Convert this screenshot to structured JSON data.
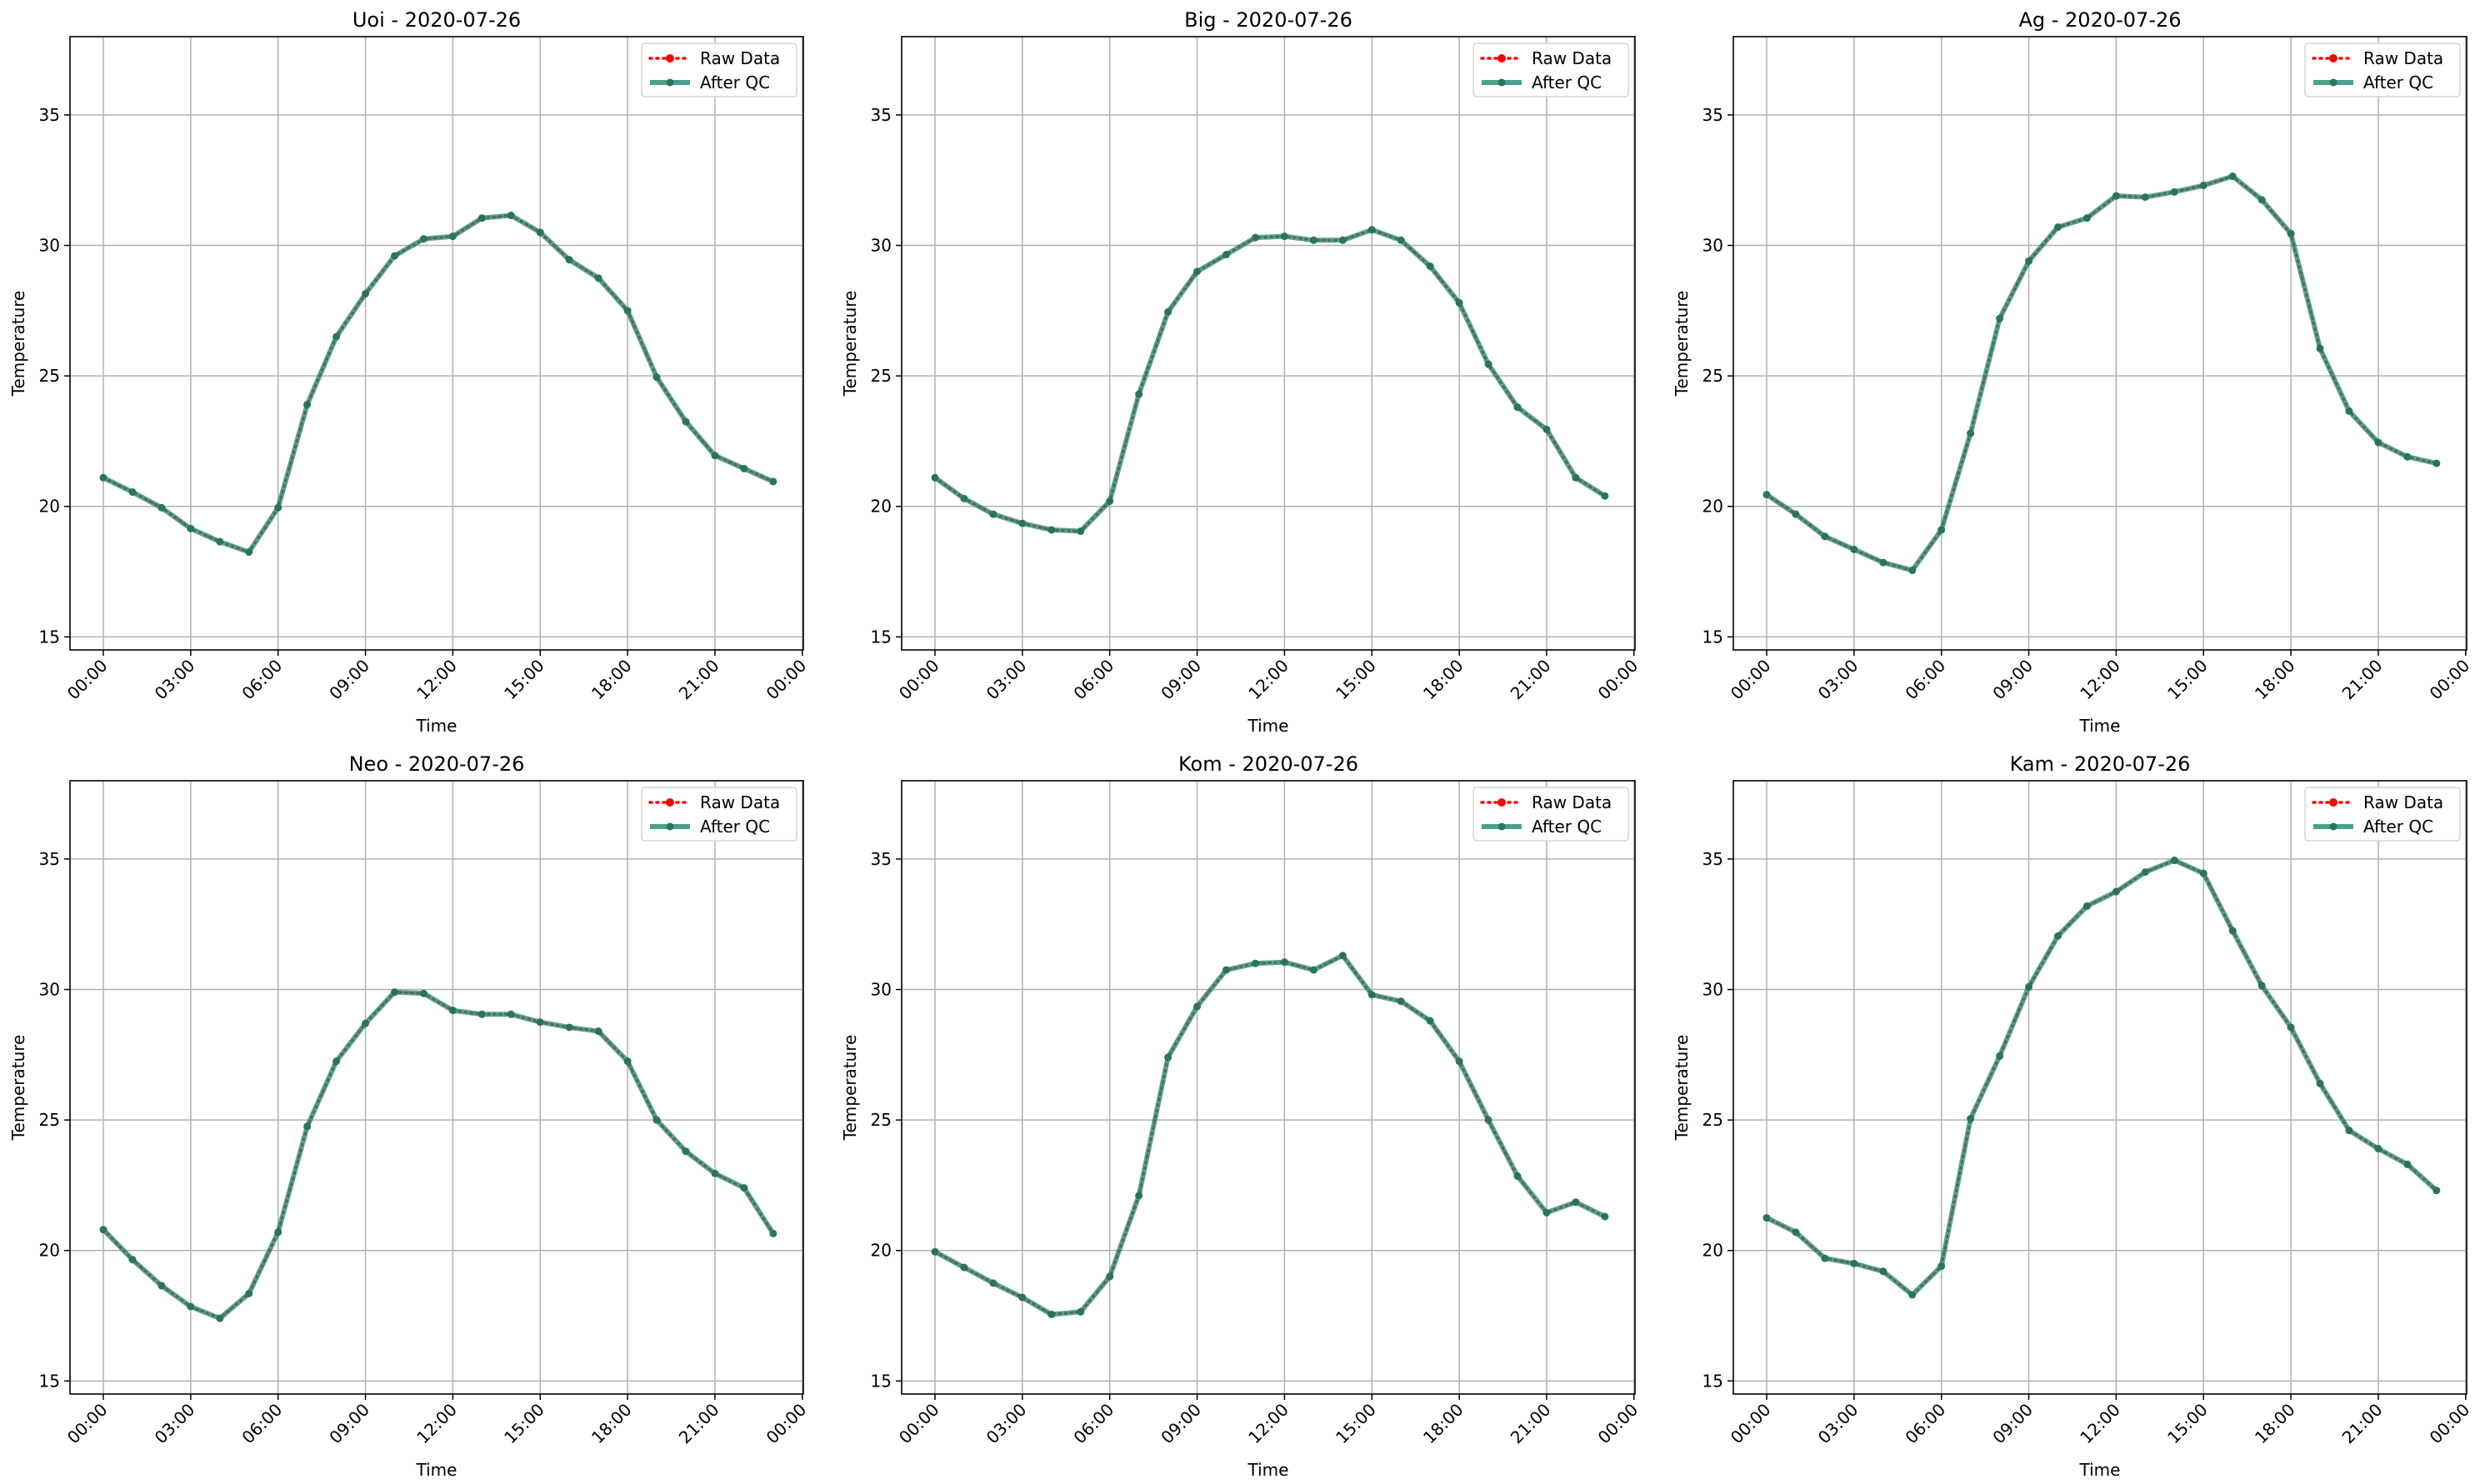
{
  "x_ticks": [
    "00:00",
    "03:00",
    "06:00",
    "09:00",
    "12:00",
    "15:00",
    "18:00",
    "21:00",
    "00:00"
  ],
  "y_ticks": [
    "15",
    "20",
    "25",
    "30",
    "35"
  ],
  "colors": {
    "raw": "#ff0000",
    "qc": "#1f8a6e",
    "qc_marker": "#2a7360",
    "grid": "#b0b0b0"
  },
  "chart_data": [
    {
      "type": "line",
      "title": "Uoi - 2020-07-26",
      "xlabel": "Time",
      "ylabel": "Temperature",
      "ylim": [
        14.5,
        38
      ],
      "x_hours": [
        0,
        1,
        2,
        3,
        4,
        5,
        6,
        7,
        8,
        9,
        10,
        11,
        12,
        13,
        14,
        15,
        16,
        17,
        18,
        19,
        20,
        21,
        22,
        23
      ],
      "legend": {
        "position": "upper-right",
        "entries": [
          "Raw Data",
          "After QC"
        ]
      },
      "series": [
        {
          "name": "Raw Data",
          "values": [
            21.1,
            20.55,
            19.95,
            19.15,
            18.65,
            18.25,
            19.95,
            23.9,
            26.5,
            28.15,
            29.6,
            30.25,
            30.35,
            31.05,
            31.15,
            30.5,
            29.45,
            28.75,
            27.5,
            24.95,
            23.25,
            21.95,
            21.45,
            20.95
          ]
        },
        {
          "name": "After QC",
          "values": [
            21.1,
            20.55,
            19.95,
            19.15,
            18.65,
            18.25,
            19.95,
            23.9,
            26.5,
            28.15,
            29.6,
            30.25,
            30.35,
            31.05,
            31.15,
            30.5,
            29.45,
            28.75,
            27.5,
            24.95,
            23.25,
            21.95,
            21.45,
            20.95
          ]
        }
      ]
    },
    {
      "type": "line",
      "title": "Big - 2020-07-26",
      "xlabel": "Time",
      "ylabel": "Temperature",
      "ylim": [
        14.5,
        38
      ],
      "x_hours": [
        0,
        1,
        2,
        3,
        4,
        5,
        6,
        7,
        8,
        9,
        10,
        11,
        12,
        13,
        14,
        15,
        16,
        17,
        18,
        19,
        20,
        21,
        22,
        23
      ],
      "legend": {
        "position": "upper-right",
        "entries": [
          "Raw Data",
          "After QC"
        ]
      },
      "series": [
        {
          "name": "Raw Data",
          "values": [
            21.1,
            20.3,
            19.7,
            19.35,
            19.1,
            19.05,
            20.2,
            24.3,
            27.45,
            29.0,
            29.65,
            30.3,
            30.35,
            30.2,
            30.2,
            30.6,
            30.2,
            29.2,
            27.8,
            25.45,
            23.8,
            22.95,
            21.1,
            20.4
          ]
        },
        {
          "name": "After QC",
          "values": [
            21.1,
            20.3,
            19.7,
            19.35,
            19.1,
            19.05,
            20.2,
            24.3,
            27.45,
            29.0,
            29.65,
            30.3,
            30.35,
            30.2,
            30.2,
            30.6,
            30.2,
            29.2,
            27.8,
            25.45,
            23.8,
            22.95,
            21.1,
            20.4
          ]
        }
      ]
    },
    {
      "type": "line",
      "title": "Ag - 2020-07-26",
      "xlabel": "Time",
      "ylabel": "Temperature",
      "ylim": [
        14.5,
        38
      ],
      "x_hours": [
        0,
        1,
        2,
        3,
        4,
        5,
        6,
        7,
        8,
        9,
        10,
        11,
        12,
        13,
        14,
        15,
        16,
        17,
        18,
        19,
        20,
        21,
        22,
        23
      ],
      "legend": {
        "position": "upper-right",
        "entries": [
          "Raw Data",
          "After QC"
        ]
      },
      "series": [
        {
          "name": "Raw Data",
          "values": [
            20.45,
            19.7,
            18.85,
            18.35,
            17.85,
            17.55,
            19.1,
            22.8,
            27.2,
            29.4,
            30.7,
            31.05,
            31.9,
            31.85,
            32.05,
            32.3,
            32.65,
            31.75,
            30.45,
            26.05,
            23.65,
            22.45,
            21.9,
            21.65
          ]
        },
        {
          "name": "After QC",
          "values": [
            20.45,
            19.7,
            18.85,
            18.35,
            17.85,
            17.55,
            19.1,
            22.8,
            27.2,
            29.4,
            30.7,
            31.05,
            31.9,
            31.85,
            32.05,
            32.3,
            32.65,
            31.75,
            30.45,
            26.05,
            23.65,
            22.45,
            21.9,
            21.65
          ]
        }
      ]
    },
    {
      "type": "line",
      "title": "Neo - 2020-07-26",
      "xlabel": "Time",
      "ylabel": "Temperature",
      "ylim": [
        14.5,
        38
      ],
      "x_hours": [
        0,
        1,
        2,
        3,
        4,
        5,
        6,
        7,
        8,
        9,
        10,
        11,
        12,
        13,
        14,
        15,
        16,
        17,
        18,
        19,
        20,
        21,
        22,
        23
      ],
      "legend": {
        "position": "upper-right",
        "entries": [
          "Raw Data",
          "After QC"
        ]
      },
      "series": [
        {
          "name": "Raw Data",
          "values": [
            20.8,
            19.65,
            18.65,
            17.85,
            17.4,
            18.35,
            20.7,
            24.75,
            27.25,
            28.7,
            29.9,
            29.85,
            29.2,
            29.05,
            29.05,
            28.75,
            28.55,
            28.4,
            27.25,
            25.0,
            23.8,
            22.95,
            22.4,
            20.65
          ]
        },
        {
          "name": "After QC",
          "values": [
            20.8,
            19.65,
            18.65,
            17.85,
            17.4,
            18.35,
            20.7,
            24.75,
            27.25,
            28.7,
            29.9,
            29.85,
            29.2,
            29.05,
            29.05,
            28.75,
            28.55,
            28.4,
            27.25,
            25.0,
            23.8,
            22.95,
            22.4,
            20.65
          ]
        }
      ]
    },
    {
      "type": "line",
      "title": "Kom - 2020-07-26",
      "xlabel": "Time",
      "ylabel": "Temperature",
      "ylim": [
        14.5,
        38
      ],
      "x_hours": [
        0,
        1,
        2,
        3,
        4,
        5,
        6,
        7,
        8,
        9,
        10,
        11,
        12,
        13,
        14,
        15,
        16,
        17,
        18,
        19,
        20,
        21,
        22,
        23
      ],
      "legend": {
        "position": "upper-right",
        "entries": [
          "Raw Data",
          "After QC"
        ]
      },
      "series": [
        {
          "name": "Raw Data",
          "values": [
            19.95,
            19.35,
            18.75,
            18.2,
            17.55,
            17.65,
            19.0,
            22.1,
            27.4,
            29.35,
            30.75,
            31.0,
            31.05,
            30.75,
            31.3,
            29.8,
            29.55,
            28.8,
            27.25,
            25.0,
            22.85,
            21.45,
            21.85,
            21.3
          ]
        },
        {
          "name": "After QC",
          "values": [
            19.95,
            19.35,
            18.75,
            18.2,
            17.55,
            17.65,
            19.0,
            22.1,
            27.4,
            29.35,
            30.75,
            31.0,
            31.05,
            30.75,
            31.3,
            29.8,
            29.55,
            28.8,
            27.25,
            25.0,
            22.85,
            21.45,
            21.85,
            21.3
          ]
        }
      ]
    },
    {
      "type": "line",
      "title": "Kam - 2020-07-26",
      "xlabel": "Time",
      "ylabel": "Temperature",
      "ylim": [
        14.5,
        38
      ],
      "x_hours": [
        0,
        1,
        2,
        3,
        4,
        5,
        6,
        7,
        8,
        9,
        10,
        11,
        12,
        13,
        14,
        15,
        16,
        17,
        18,
        19,
        20,
        21,
        22,
        23
      ],
      "legend": {
        "position": "upper-right",
        "entries": [
          "Raw Data",
          "After QC"
        ]
      },
      "series": [
        {
          "name": "Raw Data",
          "values": [
            21.25,
            20.7,
            19.7,
            19.5,
            19.2,
            18.3,
            19.4,
            25.05,
            27.45,
            30.1,
            32.05,
            33.2,
            33.75,
            34.5,
            34.95,
            34.45,
            32.25,
            30.15,
            28.55,
            26.4,
            24.6,
            23.9,
            23.3,
            22.3
          ]
        },
        {
          "name": "After QC",
          "values": [
            21.25,
            20.7,
            19.7,
            19.5,
            19.2,
            18.3,
            19.4,
            25.05,
            27.45,
            30.1,
            32.05,
            33.2,
            33.75,
            34.5,
            34.95,
            34.45,
            32.25,
            30.15,
            28.55,
            26.4,
            24.6,
            23.9,
            23.3,
            22.3
          ]
        }
      ]
    }
  ]
}
